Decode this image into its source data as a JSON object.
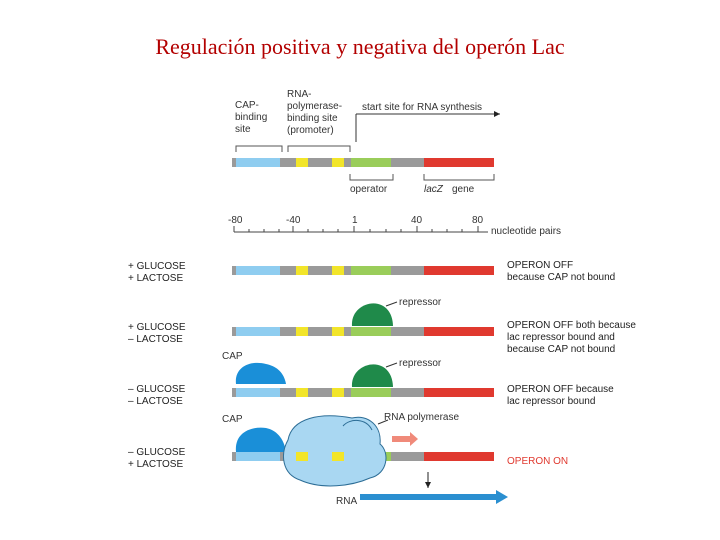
{
  "title": "Regulación positiva y negativa del operón Lac",
  "labels": {
    "cap_binding_site": [
      "CAP-",
      "binding",
      "site"
    ],
    "rna_polymerase_binding_site": [
      "RNA-",
      "polymerase-",
      "binding site",
      "(promoter)"
    ],
    "start_site": "start site for RNA synthesis",
    "operator": "operator",
    "lacz_italic": "lacZ",
    "lacz_gene": "gene",
    "scale_ticks": [
      "-80",
      "-40",
      "1",
      "40",
      "80"
    ],
    "nucleotide_pairs": "nucleotide pairs",
    "repressor": "repressor",
    "cap": "CAP",
    "rna_polymerase": "RNA polymerase",
    "rna": "RNA"
  },
  "rows": [
    {
      "conditions": [
        "+ GLUCOSE",
        "+ LACTOSE"
      ],
      "status": [
        "OPERON OFF",
        "because CAP not bound"
      ]
    },
    {
      "conditions": [
        "+ GLUCOSE",
        "– LACTOSE"
      ],
      "status": [
        "OPERON OFF both because",
        "lac repressor bound and",
        "because CAP not bound"
      ]
    },
    {
      "conditions": [
        "– GLUCOSE",
        "– LACTOSE"
      ],
      "status": [
        "OPERON OFF because",
        "lac repressor bound"
      ]
    },
    {
      "conditions": [
        "– GLUCOSE",
        "+ LACTOSE"
      ],
      "status": [
        "OPERON ON"
      ]
    }
  ],
  "colors": {
    "title": "#b30000",
    "dna": "#9a9a9a",
    "cap_site": "#8fcdf0",
    "yellow_box": "#f2e52a",
    "operator": "#9acd5a",
    "lacz": "#e0392f",
    "repressor": "#1f8a4a",
    "cap_protein": "#1a8fd8",
    "rna_polymerase": "#a9d7f2",
    "rna_arrow": "#2a8fd0",
    "on_arrow": "#f08a7a"
  }
}
